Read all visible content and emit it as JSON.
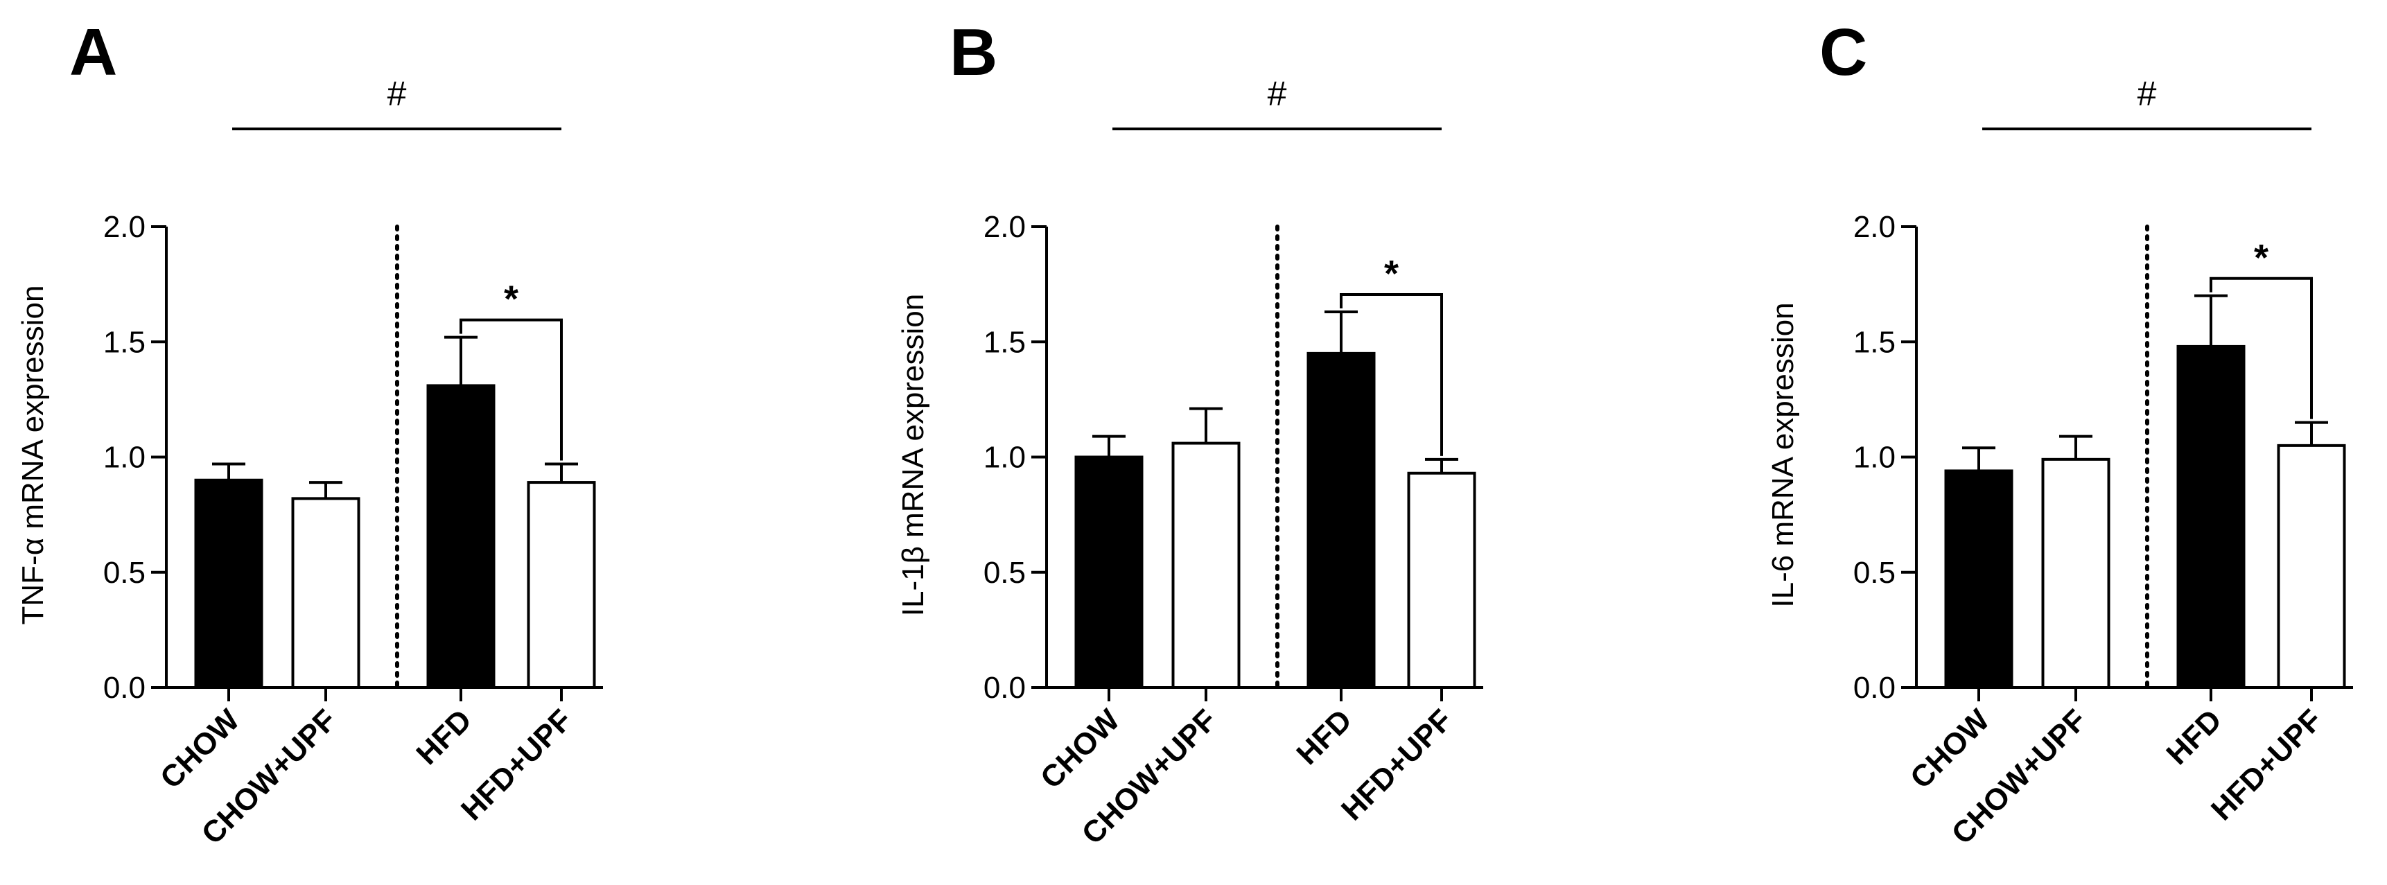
{
  "chart_data": [
    {
      "panel": "A",
      "type": "bar",
      "ylabel": "TNF-α mRNA expression",
      "ylim": [
        0,
        2.0
      ],
      "yticks": [
        "0.0",
        "0.5",
        "1.0",
        "1.5",
        "2.0"
      ],
      "categories": [
        "CHOW",
        "CHOW+UPF",
        "HFD",
        "HFD+UPF"
      ],
      "values": [
        0.9,
        0.82,
        1.31,
        0.89
      ],
      "errors": [
        0.07,
        0.07,
        0.21,
        0.08
      ],
      "fills": [
        "#000000",
        "#ffffff",
        "#000000",
        "#ffffff"
      ],
      "group_bracket_label": "#",
      "sig_label": "*"
    },
    {
      "panel": "B",
      "type": "bar",
      "ylabel": "IL-1β mRNA expression",
      "ylim": [
        0,
        2.0
      ],
      "yticks": [
        "0.0",
        "0.5",
        "1.0",
        "1.5",
        "2.0"
      ],
      "categories": [
        "CHOW",
        "CHOW+UPF",
        "HFD",
        "HFD+UPF"
      ],
      "values": [
        1.0,
        1.06,
        1.45,
        0.93
      ],
      "errors": [
        0.09,
        0.15,
        0.18,
        0.06
      ],
      "fills": [
        "#000000",
        "#ffffff",
        "#000000",
        "#ffffff"
      ],
      "group_bracket_label": "#",
      "sig_label": "*"
    },
    {
      "panel": "C",
      "type": "bar",
      "ylabel": "IL-6 mRNA expression",
      "ylim": [
        0,
        2.0
      ],
      "yticks": [
        "0.0",
        "0.5",
        "1.0",
        "1.5",
        "2.0"
      ],
      "categories": [
        "CHOW",
        "CHOW+UPF",
        "HFD",
        "HFD+UPF"
      ],
      "values": [
        0.94,
        0.99,
        1.48,
        1.05
      ],
      "errors": [
        0.1,
        0.1,
        0.22,
        0.1
      ],
      "fills": [
        "#000000",
        "#ffffff",
        "#000000",
        "#ffffff"
      ],
      "group_bracket_label": "#",
      "sig_label": "*"
    }
  ]
}
